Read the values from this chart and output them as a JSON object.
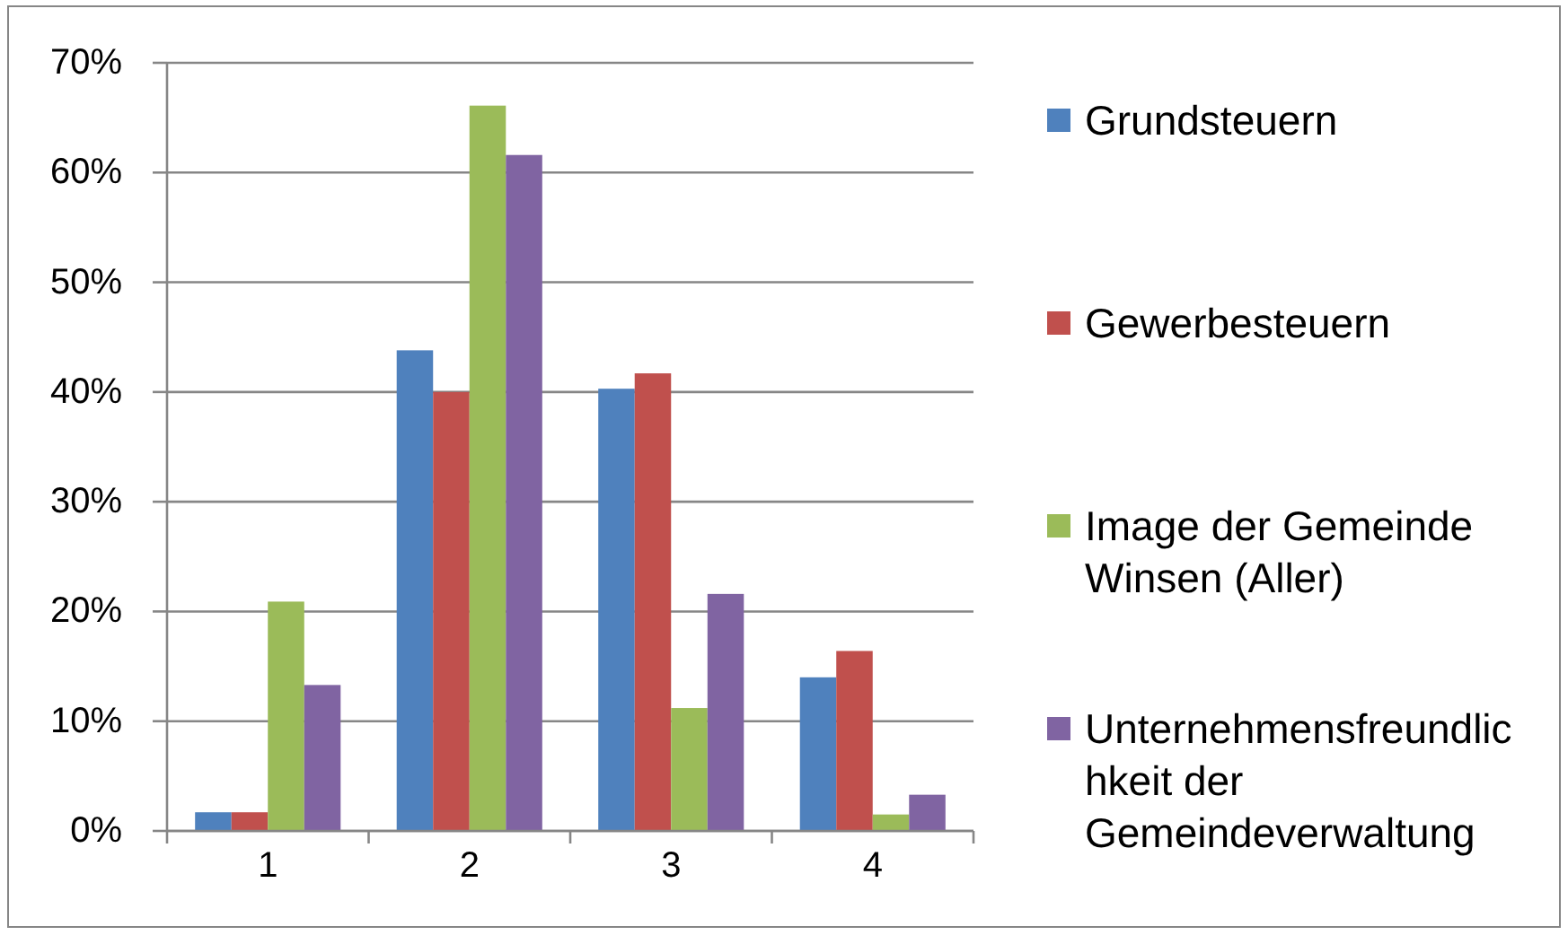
{
  "chart_data": {
    "type": "bar",
    "categories": [
      "1",
      "2",
      "3",
      "4"
    ],
    "series": [
      {
        "name": "Grundsteuern",
        "color": "#4f81bd",
        "values": [
          1.7,
          43.8,
          40.3,
          14.0
        ]
      },
      {
        "name": "Gewerbesteuern",
        "color": "#c0504d",
        "values": [
          1.7,
          40.0,
          41.7,
          16.4
        ]
      },
      {
        "name": "Image der Gemeinde Winsen (Aller)",
        "color": "#9bbb59",
        "values": [
          20.9,
          66.1,
          11.2,
          1.5
        ]
      },
      {
        "name": "Unternehmensfreundlichkeit der Gemeindeverwaltung",
        "color": "#8064a2",
        "values": [
          13.3,
          61.6,
          21.6,
          3.3
        ]
      }
    ],
    "ylim": [
      0,
      70
    ],
    "yticks": [
      {
        "value": 0,
        "label": "0%"
      },
      {
        "value": 10,
        "label": "10%"
      },
      {
        "value": 20,
        "label": "20%"
      },
      {
        "value": 30,
        "label": "30%"
      },
      {
        "value": 40,
        "label": "40%"
      },
      {
        "value": 50,
        "label": "50%"
      },
      {
        "value": 60,
        "label": "60%"
      },
      {
        "value": 70,
        "label": "70%"
      }
    ],
    "grid": "y",
    "legend": "right"
  }
}
